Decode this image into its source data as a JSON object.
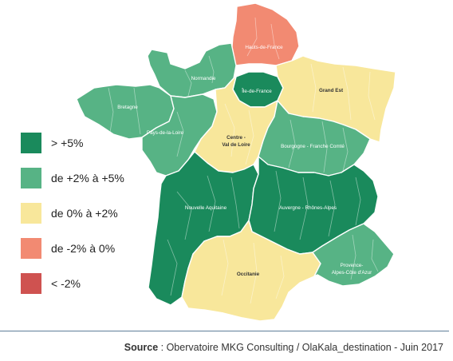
{
  "legend": [
    {
      "label": "> +5%",
      "color": "#1a8a5c"
    },
    {
      "label": "de +2% à +5%",
      "color": "#57b385"
    },
    {
      "label": "de 0% à +2%",
      "color": "#f8e79b"
    },
    {
      "label": "de -2% à 0%",
      "color": "#f28a72"
    },
    {
      "label": "< -2%",
      "color": "#cf5250"
    }
  ],
  "regions": {
    "hauts_de_france": {
      "label": "Hauts-de-France",
      "category": "de -2% à 0%"
    },
    "normandie": {
      "label": "Normandie",
      "category": "de +2% à +5%"
    },
    "ile_de_france": {
      "label": "Île-de-France",
      "category": "> +5%"
    },
    "grand_est": {
      "label": "Grand Est",
      "category": "de 0% à +2%"
    },
    "bretagne": {
      "label": "Bretagne",
      "category": "de +2% à +5%"
    },
    "pays_de_la_loire": {
      "label": "Pays-de-la-Loire",
      "category": "de +2% à +5%"
    },
    "centre_val_de_loire": {
      "label_line1": "Centre -",
      "label_line2": "Val de Loire",
      "category": "de 0% à +2%"
    },
    "bourgogne_franche_comte": {
      "label": "Bourgogne - Franche Comté",
      "category": "de +2% à +5%"
    },
    "nouvelle_aquitaine": {
      "label": "Nouvelle Aquitaine",
      "category": "> +5%"
    },
    "auvergne_rhone_alpes": {
      "label": "Auvergne - Rhônes-Alpes",
      "category": "> +5%"
    },
    "occitanie": {
      "label": "Occitanie",
      "category": "de 0% à +2%"
    },
    "paca": {
      "label_line1": "Provence-",
      "label_line2": "Alpes-Côte d'Azur",
      "category": "de +2% à +5%"
    }
  },
  "source": {
    "prefix": "Source",
    "text": " : Obervatoire MKG Consulting / OlaKala_destination - Juin 2017"
  }
}
